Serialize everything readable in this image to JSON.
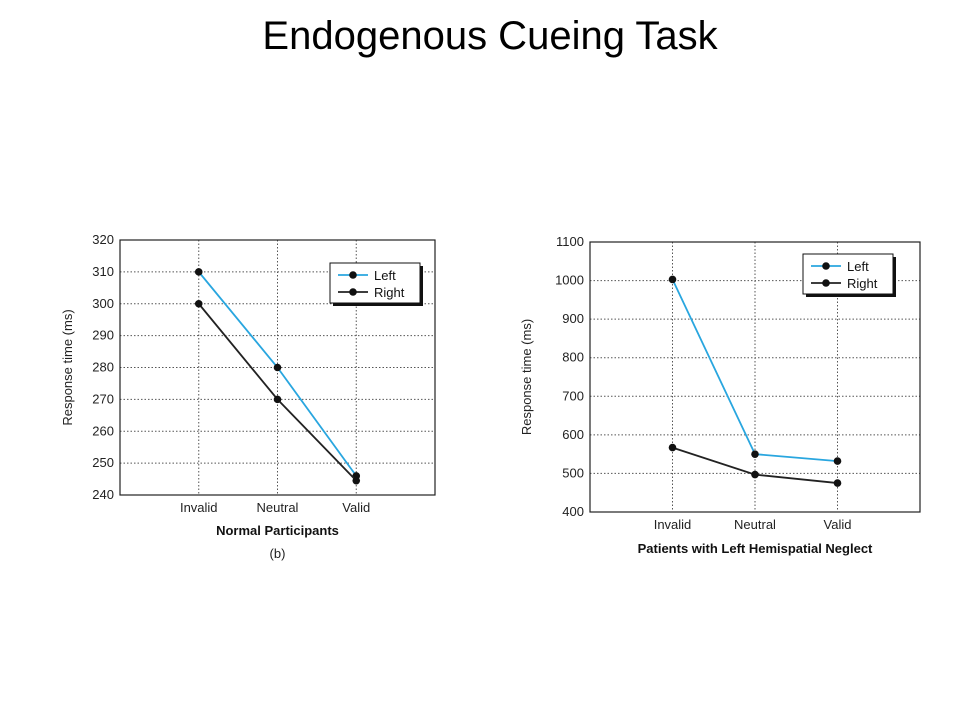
{
  "slide": {
    "title": "Endogenous Cueing Task"
  },
  "chart_data": [
    {
      "type": "line",
      "categories": [
        "Invalid",
        "Neutral",
        "Valid"
      ],
      "series": [
        {
          "name": "Left",
          "values": [
            310,
            280,
            246
          ],
          "color": "#29a6df"
        },
        {
          "name": "Right",
          "values": [
            300,
            270,
            244.5
          ],
          "color": "#222222"
        }
      ],
      "xlabel": "Normal Participants",
      "ylabel": "Response time (ms)",
      "subcaption": "(b)",
      "ylim": [
        240,
        320
      ],
      "yticks": [
        240,
        250,
        260,
        270,
        280,
        290,
        300,
        310,
        320
      ],
      "grid": true,
      "legend": "top-right"
    },
    {
      "type": "line",
      "categories": [
        "Invalid",
        "Neutral",
        "Valid"
      ],
      "series": [
        {
          "name": "Left",
          "values": [
            1003,
            550,
            532
          ],
          "color": "#29a6df"
        },
        {
          "name": "Right",
          "values": [
            567,
            497,
            475
          ],
          "color": "#222222"
        }
      ],
      "xlabel": "Patients with Left Hemispatial Neglect",
      "ylabel": "Response time (ms)",
      "ylim": [
        400,
        1100
      ],
      "yticks": [
        400,
        500,
        600,
        700,
        800,
        900,
        1000,
        1100
      ],
      "grid": true,
      "legend": "top-right"
    }
  ]
}
